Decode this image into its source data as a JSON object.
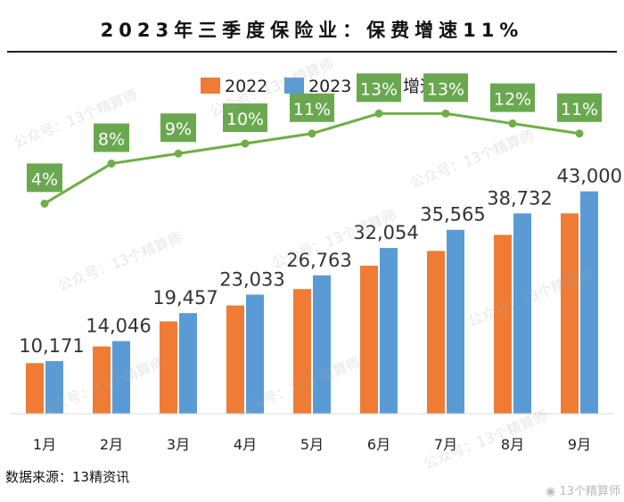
{
  "title": "2023年三季度保险业：保费增速11%",
  "source": "数据来源：13精资讯",
  "watermark": "公众号：13个精算师",
  "weibo_mark": "13个精算师",
  "colors": {
    "bar2022": "#ef7b35",
    "bar2023": "#5b9bd5",
    "growth": "#70ad47",
    "growth_label_bg": "#6aa84f"
  },
  "chart_data": {
    "type": "bar",
    "title": "2023年三季度保险业：保费增速11%",
    "categories": [
      "1月",
      "2月",
      "3月",
      "4月",
      "5月",
      "6月",
      "7月",
      "8月",
      "9月"
    ],
    "series": [
      {
        "name": "2022",
        "values": [
          9780,
          13004,
          17850,
          20939,
          24110,
          28619,
          31474,
          34582,
          38739
        ]
      },
      {
        "name": "2023",
        "values": [
          10171,
          14046,
          19457,
          23033,
          26763,
          32054,
          35565,
          38732,
          43000
        ]
      }
    ],
    "bar_labels": [
      "10,171",
      "14,046",
      "19,457",
      "23,033",
      "26,763",
      "32,054",
      "35,565",
      "38,732",
      "43,000"
    ],
    "growth": {
      "name": "增速",
      "type": "line",
      "values": [
        4,
        8,
        9,
        10,
        11,
        13,
        13,
        12,
        11
      ],
      "labels": [
        "4%",
        "8%",
        "9%",
        "10%",
        "11%",
        "13%",
        "13%",
        "12%",
        "11%"
      ]
    },
    "legend": [
      "2022",
      "2023",
      "增速"
    ],
    "legend_position": "top",
    "ylim": [
      0,
      50000
    ],
    "growth_ylim": [
      -17,
      19
    ],
    "grid": false
  }
}
